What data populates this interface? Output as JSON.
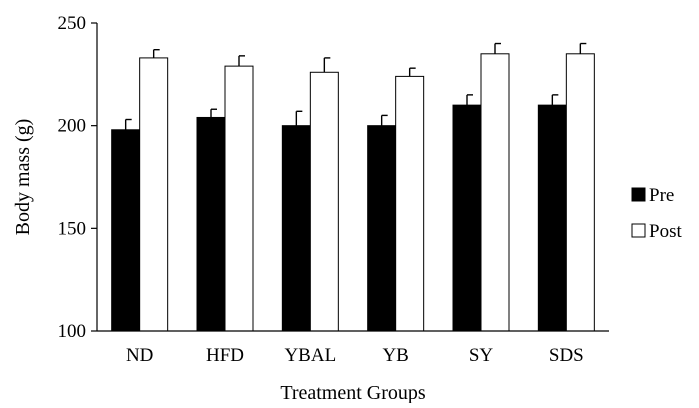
{
  "chart_data": {
    "type": "bar",
    "title": "",
    "xlabel": "Treatment Groups",
    "ylabel": "Body mass (g)",
    "categories": [
      "ND",
      "HFD",
      "YBAL",
      "YB",
      "SY",
      "SDS"
    ],
    "ylim": [
      100,
      250
    ],
    "yticks": [
      100,
      150,
      200,
      250
    ],
    "grid": false,
    "legend_position": "right",
    "series": [
      {
        "name": "Pre",
        "fill": "#000000",
        "stroke": "#000000",
        "values": [
          198,
          204,
          200,
          200,
          210,
          210
        ],
        "errors": [
          5,
          4,
          7,
          5,
          5,
          5
        ]
      },
      {
        "name": "Post",
        "fill": "#ffffff",
        "stroke": "#000000",
        "values": [
          233,
          229,
          226,
          224,
          235,
          235
        ],
        "errors": [
          4,
          5,
          7,
          4,
          5,
          5
        ]
      }
    ]
  }
}
